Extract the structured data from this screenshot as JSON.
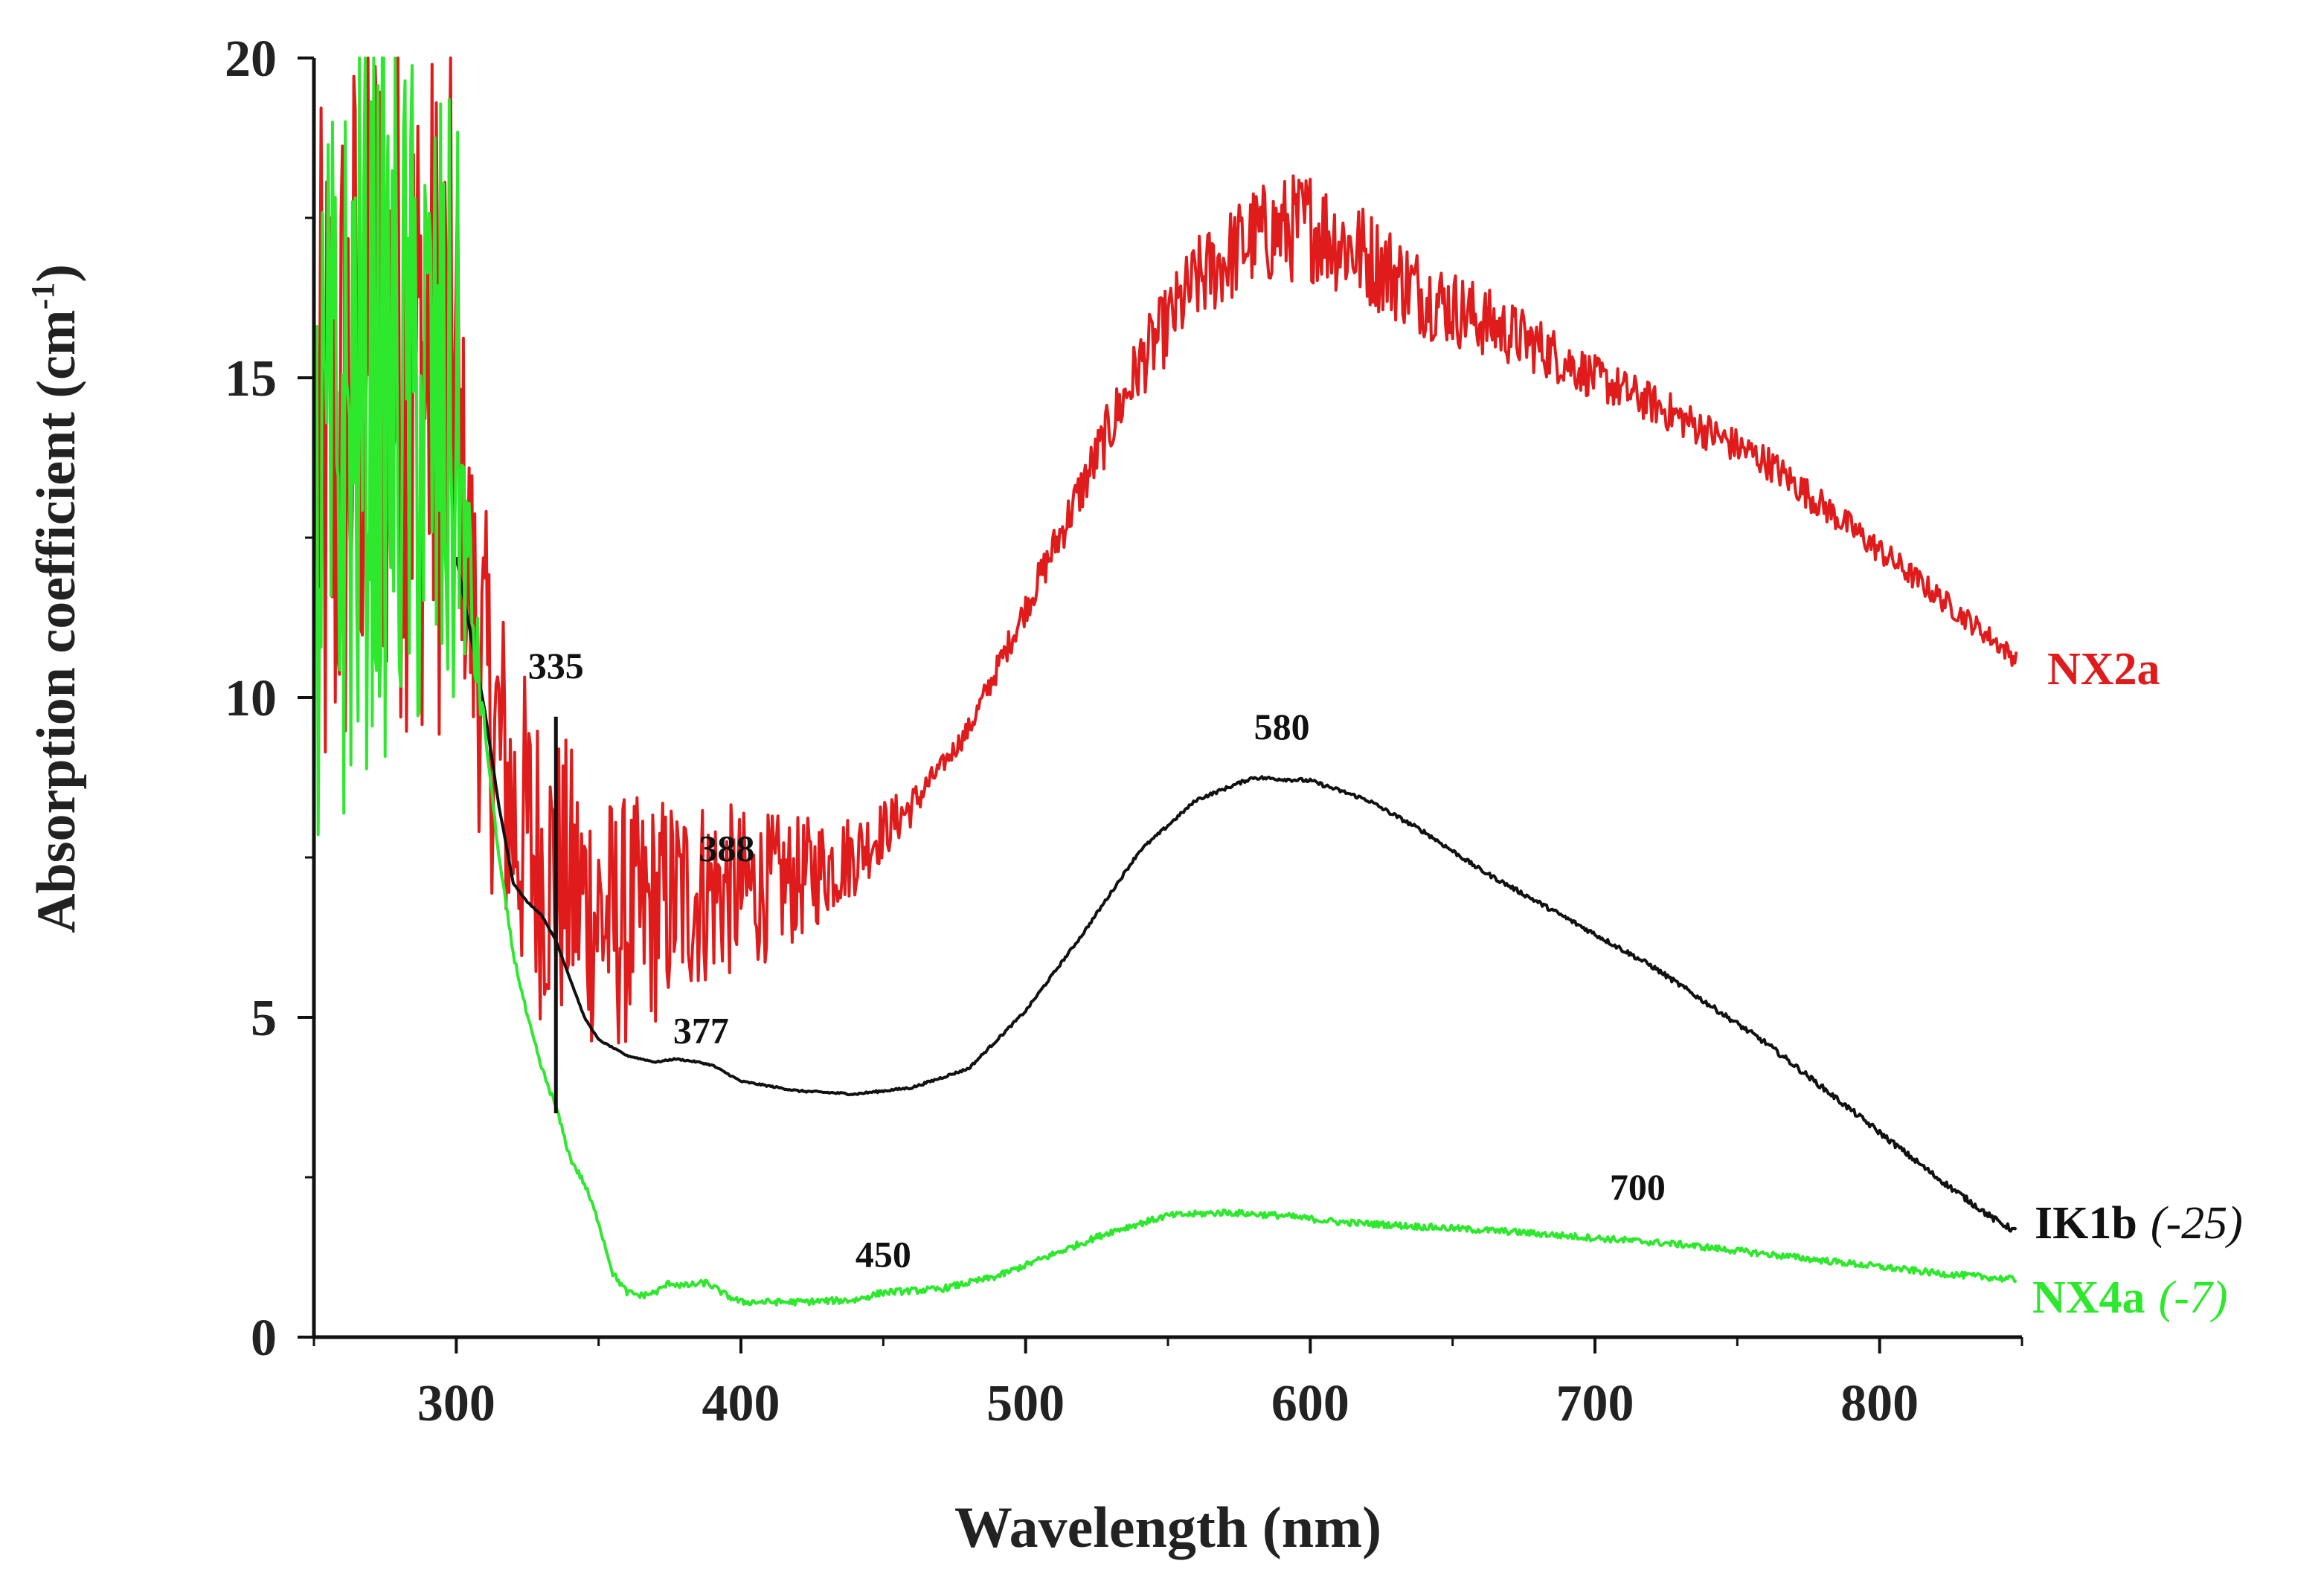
{
  "chart_data": {
    "type": "line",
    "title": "",
    "xlabel": "Wavelength (nm)",
    "ylabel_main": "Absorption coefficient (cm",
    "ylabel_sup": "-1",
    "ylabel_close": ")",
    "xlim": [
      250,
      850
    ],
    "ylim": [
      0,
      20
    ],
    "x_ticks": [
      300,
      400,
      500,
      600,
      700,
      800
    ],
    "x_tick_labels": [
      "300",
      "400",
      "500",
      "600",
      "700",
      "800"
    ],
    "y_ticks": [
      0,
      5,
      10,
      15,
      20
    ],
    "y_tick_labels": [
      "0",
      "5",
      "10",
      "15",
      "20"
    ],
    "series": [
      {
        "name": "NX2a",
        "offset_label": "",
        "color": "#e01b1b",
        "noise_above": [
          [
            250,
            3.5
          ],
          [
            300,
            3.0
          ],
          [
            470,
            0.15
          ],
          [
            500,
            0.25
          ],
          [
            560,
            0.7
          ],
          [
            600,
            0.9
          ],
          [
            700,
            0.35
          ],
          [
            850,
            0.15
          ]
        ],
        "points": [
          [
            251,
            12.8
          ],
          [
            270,
            15.5
          ],
          [
            300,
            14.6
          ],
          [
            305,
            11.5
          ],
          [
            310,
            10.2
          ],
          [
            320,
            8.2
          ],
          [
            330,
            7.4
          ],
          [
            340,
            7.0
          ],
          [
            350,
            6.6
          ],
          [
            355,
            6.45
          ],
          [
            365,
            6.55
          ],
          [
            375,
            6.8
          ],
          [
            388,
            7.0
          ],
          [
            400,
            6.95
          ],
          [
            420,
            7.15
          ],
          [
            440,
            7.55
          ],
          [
            460,
            8.3
          ],
          [
            480,
            9.5
          ],
          [
            500,
            11.4
          ],
          [
            520,
            13.3
          ],
          [
            540,
            15.2
          ],
          [
            560,
            16.5
          ],
          [
            580,
            17.2
          ],
          [
            600,
            17.4
          ],
          [
            620,
            16.9
          ],
          [
            640,
            16.3
          ],
          [
            660,
            15.9
          ],
          [
            680,
            15.5
          ],
          [
            700,
            15.0
          ],
          [
            720,
            14.6
          ],
          [
            740,
            14.15
          ],
          [
            760,
            13.7
          ],
          [
            780,
            13.0
          ],
          [
            800,
            12.3
          ],
          [
            820,
            11.6
          ],
          [
            840,
            10.9
          ],
          [
            848,
            10.6
          ]
        ]
      },
      {
        "name": "IK1b",
        "offset_label": "(-25)",
        "color": "#111111",
        "noise_above": [
          [
            250,
            0.0
          ],
          [
            850,
            0.05
          ]
        ],
        "points": [
          [
            300,
            12.2
          ],
          [
            305,
            11.0
          ],
          [
            310,
            9.8
          ],
          [
            315,
            8.3
          ],
          [
            320,
            7.1
          ],
          [
            325,
            6.8
          ],
          [
            330,
            6.6
          ],
          [
            335,
            6.2
          ],
          [
            340,
            5.6
          ],
          [
            345,
            5.0
          ],
          [
            350,
            4.65
          ],
          [
            360,
            4.4
          ],
          [
            370,
            4.3
          ],
          [
            377,
            4.35
          ],
          [
            385,
            4.3
          ],
          [
            390,
            4.25
          ],
          [
            400,
            4.0
          ],
          [
            420,
            3.85
          ],
          [
            440,
            3.8
          ],
          [
            460,
            3.9
          ],
          [
            480,
            4.2
          ],
          [
            500,
            5.1
          ],
          [
            520,
            6.3
          ],
          [
            540,
            7.6
          ],
          [
            560,
            8.4
          ],
          [
            580,
            8.75
          ],
          [
            600,
            8.7
          ],
          [
            620,
            8.4
          ],
          [
            640,
            7.9
          ],
          [
            660,
            7.3
          ],
          [
            680,
            6.8
          ],
          [
            700,
            6.3
          ],
          [
            720,
            5.8
          ],
          [
            740,
            5.2
          ],
          [
            760,
            4.6
          ],
          [
            780,
            3.9
          ],
          [
            800,
            3.2
          ],
          [
            820,
            2.5
          ],
          [
            840,
            1.85
          ],
          [
            848,
            1.65
          ]
        ]
      },
      {
        "name": "NX4a",
        "offset_label": "(-7)",
        "color": "#2ee82e",
        "noise_above": [
          [
            250,
            3.5
          ],
          [
            300,
            3.0
          ],
          [
            310,
            0.05
          ],
          [
            850,
            0.05
          ]
        ],
        "points": [
          [
            251,
            12.5
          ],
          [
            270,
            15.0
          ],
          [
            300,
            14.0
          ],
          [
            305,
            11.5
          ],
          [
            310,
            9.5
          ],
          [
            315,
            7.5
          ],
          [
            320,
            6.0
          ],
          [
            325,
            5.0
          ],
          [
            330,
            4.2
          ],
          [
            335,
            3.6
          ],
          [
            340,
            2.8
          ],
          [
            345,
            2.4
          ],
          [
            350,
            1.8
          ],
          [
            355,
            1.0
          ],
          [
            360,
            0.7
          ],
          [
            365,
            0.65
          ],
          [
            370,
            0.7
          ],
          [
            375,
            0.85
          ],
          [
            380,
            0.8
          ],
          [
            388,
            0.85
          ],
          [
            395,
            0.65
          ],
          [
            400,
            0.55
          ],
          [
            420,
            0.55
          ],
          [
            440,
            0.58
          ],
          [
            450,
            0.7
          ],
          [
            470,
            0.75
          ],
          [
            490,
            0.95
          ],
          [
            510,
            1.3
          ],
          [
            530,
            1.65
          ],
          [
            550,
            1.9
          ],
          [
            570,
            1.95
          ],
          [
            590,
            1.9
          ],
          [
            610,
            1.8
          ],
          [
            630,
            1.75
          ],
          [
            650,
            1.7
          ],
          [
            670,
            1.65
          ],
          [
            700,
            1.55
          ],
          [
            730,
            1.45
          ],
          [
            760,
            1.3
          ],
          [
            790,
            1.15
          ],
          [
            820,
            1.0
          ],
          [
            848,
            0.9
          ]
        ]
      }
    ],
    "annotations": [
      {
        "text": "335",
        "x": 335,
        "y": 10.3
      },
      {
        "text": "388",
        "x": 395,
        "y": 7.45
      },
      {
        "text": "377",
        "x": 386,
        "y": 4.6
      },
      {
        "text": "580",
        "x": 590,
        "y": 9.35
      },
      {
        "text": "450",
        "x": 450,
        "y": 1.1
      },
      {
        "text": "700",
        "x": 715,
        "y": 2.15
      }
    ],
    "vertical_marker": {
      "x": 335,
      "y_from": 3.5,
      "y_to": 9.7
    }
  }
}
